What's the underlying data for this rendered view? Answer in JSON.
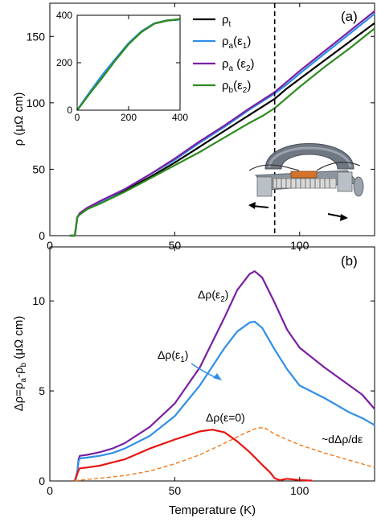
{
  "chart_data": [
    {
      "panel": "a",
      "panel_label": "(a)",
      "type": "line",
      "xlabel": "",
      "ylabel": "ρ (μΩ cm)",
      "xlim": [
        0,
        130
      ],
      "ylim": [
        0,
        175
      ],
      "x_ticks": [
        0,
        50,
        100
      ],
      "y_ticks": [
        0,
        50,
        100,
        150
      ],
      "grid": false,
      "legend_position": "top-center",
      "vline_x": 90,
      "series": [
        {
          "name": "ρt",
          "color": "#000000",
          "points": [
            [
              8,
              0
            ],
            [
              10,
              0
            ],
            [
              11,
              14
            ],
            [
              12,
              16
            ],
            [
              15,
              20
            ],
            [
              20,
              25
            ],
            [
              30,
              34
            ],
            [
              40,
              44
            ],
            [
              50,
              55
            ],
            [
              60,
              67
            ],
            [
              70,
              79
            ],
            [
              80,
              91
            ],
            [
              85,
              97
            ],
            [
              90,
              103
            ],
            [
              95,
              111
            ],
            [
              100,
              118
            ],
            [
              110,
              132
            ],
            [
              120,
              146
            ],
            [
              130,
              160
            ]
          ]
        },
        {
          "name": "ρa(ε1)",
          "color": "#2f8fe8",
          "points": [
            [
              8,
              0
            ],
            [
              10,
              0
            ],
            [
              11,
              14
            ],
            [
              12,
              16
            ],
            [
              15,
              20
            ],
            [
              20,
              25
            ],
            [
              30,
              35
            ],
            [
              40,
              46
            ],
            [
              50,
              57
            ],
            [
              60,
              70
            ],
            [
              70,
              82
            ],
            [
              80,
              95
            ],
            [
              85,
              101
            ],
            [
              90,
              107
            ],
            [
              95,
              114
            ],
            [
              100,
              122
            ],
            [
              110,
              137
            ],
            [
              120,
              152
            ],
            [
              130,
              167
            ]
          ]
        },
        {
          "name": "ρa(ε2)",
          "color": "#7a1fa2",
          "points": [
            [
              8,
              0
            ],
            [
              10,
              0
            ],
            [
              11,
              14
            ],
            [
              12,
              17
            ],
            [
              15,
              21
            ],
            [
              20,
              26
            ],
            [
              30,
              35
            ],
            [
              40,
              46
            ],
            [
              50,
              58
            ],
            [
              60,
              71
            ],
            [
              70,
              83
            ],
            [
              80,
              96
            ],
            [
              85,
              102
            ],
            [
              90,
              108
            ],
            [
              95,
              116
            ],
            [
              100,
              124
            ],
            [
              110,
              139
            ],
            [
              120,
              154
            ],
            [
              130,
              169
            ]
          ]
        },
        {
          "name": "ρb(ε2)",
          "color": "#2e8b1f",
          "points": [
            [
              8,
              0
            ],
            [
              10,
              0
            ],
            [
              11,
              14
            ],
            [
              12,
              16
            ],
            [
              15,
              20
            ],
            [
              20,
              24
            ],
            [
              30,
              33
            ],
            [
              40,
              43
            ],
            [
              50,
              53
            ],
            [
              60,
              63
            ],
            [
              70,
              74
            ],
            [
              80,
              85
            ],
            [
              85,
              90
            ],
            [
              90,
              96
            ],
            [
              95,
              104
            ],
            [
              100,
              112
            ],
            [
              110,
              127
            ],
            [
              120,
              141
            ],
            [
              130,
              156
            ]
          ]
        }
      ],
      "inset": {
        "type": "line",
        "xlim": [
          0,
          400
        ],
        "ylim": [
          0,
          400
        ],
        "x_ticks": [
          0,
          200,
          400
        ],
        "y_ticks": [
          0,
          200,
          400
        ],
        "series": [
          {
            "name": "ρt",
            "color": "#000000",
            "points": [
              [
                0,
                0
              ],
              [
                20,
                30
              ],
              [
                50,
                75
              ],
              [
                100,
                150
              ],
              [
                150,
                215
              ],
              [
                200,
                280
              ],
              [
                250,
                330
              ],
              [
                300,
                365
              ],
              [
                350,
                378
              ],
              [
                400,
                382
              ]
            ]
          },
          {
            "name": "ρa(ε1)",
            "color": "#2f8fe8",
            "points": [
              [
                0,
                0
              ],
              [
                20,
                32
              ],
              [
                50,
                78
              ],
              [
                100,
                152
              ],
              [
                150,
                218
              ],
              [
                200,
                283
              ],
              [
                250,
                333
              ],
              [
                300,
                366
              ],
              [
                350,
                379
              ],
              [
                400,
                382
              ]
            ]
          },
          {
            "name": "ρb(ε2)",
            "color": "#2e8b1f",
            "points": [
              [
                0,
                0
              ],
              [
                20,
                28
              ],
              [
                50,
                72
              ],
              [
                100,
                140
              ],
              [
                150,
                212
              ],
              [
                200,
                278
              ],
              [
                250,
                330
              ],
              [
                300,
                365
              ],
              [
                350,
                378
              ],
              [
                400,
                384
              ]
            ]
          }
        ]
      }
    },
    {
      "panel": "b",
      "panel_label": "(b)",
      "type": "line",
      "xlabel": "Temperature (K)",
      "ylabel": "Δρ=ρa-ρb (μΩ cm)",
      "xlim": [
        0,
        130
      ],
      "ylim": [
        0,
        13
      ],
      "x_ticks": [
        0,
        50,
        100
      ],
      "y_ticks": [
        0,
        5,
        10
      ],
      "grid": false,
      "series": [
        {
          "name": "Δρ(ε2)",
          "color": "#7a1fa2",
          "points": [
            [
              10,
              0
            ],
            [
              11,
              0.5
            ],
            [
              11.5,
              1.2
            ],
            [
              12,
              1.4
            ],
            [
              15,
              1.45
            ],
            [
              20,
              1.6
            ],
            [
              25,
              1.8
            ],
            [
              30,
              2.1
            ],
            [
              40,
              3.0
            ],
            [
              50,
              4.3
            ],
            [
              60,
              6.3
            ],
            [
              70,
              9.1
            ],
            [
              75,
              10.6
            ],
            [
              80,
              11.5
            ],
            [
              82,
              11.65
            ],
            [
              85,
              11.3
            ],
            [
              90,
              9.9
            ],
            [
              95,
              8.4
            ],
            [
              100,
              7.4
            ],
            [
              110,
              6.3
            ],
            [
              120,
              5.3
            ],
            [
              125,
              4.8
            ],
            [
              130,
              4.0
            ]
          ]
        },
        {
          "name": "Δρ(ε1)",
          "color": "#2f8fe8",
          "points": [
            [
              10,
              0
            ],
            [
              11,
              0.5
            ],
            [
              11.5,
              1.1
            ],
            [
              12,
              1.25
            ],
            [
              15,
              1.3
            ],
            [
              20,
              1.4
            ],
            [
              25,
              1.55
            ],
            [
              30,
              1.8
            ],
            [
              40,
              2.5
            ],
            [
              50,
              3.6
            ],
            [
              60,
              5.3
            ],
            [
              70,
              7.4
            ],
            [
              75,
              8.3
            ],
            [
              80,
              8.8
            ],
            [
              82,
              8.85
            ],
            [
              85,
              8.5
            ],
            [
              90,
              7.3
            ],
            [
              95,
              6.2
            ],
            [
              100,
              5.3
            ],
            [
              110,
              4.6
            ],
            [
              120,
              3.8
            ],
            [
              125,
              3.5
            ],
            [
              130,
              3.1
            ]
          ]
        },
        {
          "name": "Δρ(ε=0)",
          "color": "#e8140f",
          "points": [
            [
              10,
              0
            ],
            [
              11,
              0.4
            ],
            [
              11.5,
              0.6
            ],
            [
              12,
              0.7
            ],
            [
              15,
              0.75
            ],
            [
              20,
              0.85
            ],
            [
              30,
              1.2
            ],
            [
              40,
              1.8
            ],
            [
              50,
              2.3
            ],
            [
              60,
              2.75
            ],
            [
              65,
              2.85
            ],
            [
              70,
              2.7
            ],
            [
              75,
              2.2
            ],
            [
              80,
              1.6
            ],
            [
              85,
              0.9
            ],
            [
              88,
              0.5
            ],
            [
              90,
              0.15
            ],
            [
              92,
              0.05
            ],
            [
              95,
              0.12
            ],
            [
              100,
              0.05
            ],
            [
              105,
              0.02
            ]
          ]
        },
        {
          "name": "~dΔρ/dε",
          "color": "#f07a1a",
          "dashed": true,
          "points": [
            [
              10,
              0.02
            ],
            [
              20,
              0.15
            ],
            [
              30,
              0.3
            ],
            [
              40,
              0.55
            ],
            [
              50,
              0.95
            ],
            [
              60,
              1.45
            ],
            [
              70,
              2.1
            ],
            [
              78,
              2.65
            ],
            [
              83,
              2.95
            ],
            [
              86,
              2.95
            ],
            [
              90,
              2.6
            ],
            [
              95,
              2.3
            ],
            [
              100,
              2.0
            ],
            [
              110,
              1.55
            ],
            [
              120,
              1.15
            ],
            [
              130,
              0.75
            ]
          ]
        }
      ]
    }
  ]
}
